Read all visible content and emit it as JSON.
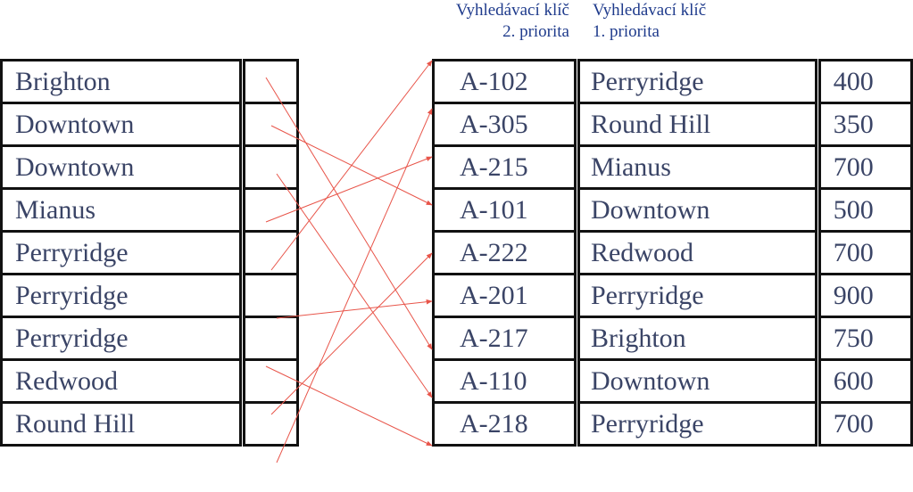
{
  "captions": {
    "secondary": {
      "line1": "Vyhledávací klíč",
      "line2": "2. priorita"
    },
    "primary": {
      "line1": "Vyhledávací klíč",
      "line2": "1. priorita"
    }
  },
  "index_entries": [
    "Brighton",
    "Downtown",
    "Downtown",
    "Mianus",
    "Perryridge",
    "Perryridge",
    "Perryridge",
    "Redwood",
    "Round Hill"
  ],
  "records": [
    {
      "account": "A-102",
      "branch": "Perryridge",
      "balance": "400"
    },
    {
      "account": "A-305",
      "branch": "Round Hill",
      "balance": "350"
    },
    {
      "account": "A-215",
      "branch": "Mianus",
      "balance": "700"
    },
    {
      "account": "A-101",
      "branch": "Downtown",
      "balance": "500"
    },
    {
      "account": "A-222",
      "branch": "Redwood",
      "balance": "700"
    },
    {
      "account": "A-201",
      "branch": "Perryridge",
      "balance": "900"
    },
    {
      "account": "A-217",
      "branch": "Brighton",
      "balance": "750"
    },
    {
      "account": "A-110",
      "branch": "Downtown",
      "balance": "600"
    },
    {
      "account": "A-218",
      "branch": "Perryridge",
      "balance": "700"
    }
  ],
  "pointers": [
    6,
    3,
    7,
    2,
    0,
    5,
    8,
    4,
    1
  ],
  "colors": {
    "arrow": "#e8554a",
    "border": "#111111",
    "text": "#3a4466",
    "caption": "#1f3b8c"
  }
}
